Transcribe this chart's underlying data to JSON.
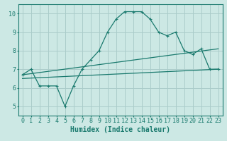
{
  "title": "",
  "xlabel": "Humidex (Indice chaleur)",
  "ylabel": "",
  "background_color": "#cce8e4",
  "grid_color": "#aaccca",
  "line_color": "#1a7a6e",
  "xlim": [
    -0.5,
    23.5
  ],
  "ylim": [
    4.5,
    10.5
  ],
  "xticks": [
    0,
    1,
    2,
    3,
    4,
    5,
    6,
    7,
    8,
    9,
    10,
    11,
    12,
    13,
    14,
    15,
    16,
    17,
    18,
    19,
    20,
    21,
    22,
    23
  ],
  "yticks": [
    5,
    6,
    7,
    8,
    9,
    10
  ],
  "main_line": {
    "x": [
      0,
      1,
      2,
      3,
      4,
      5,
      6,
      7,
      8,
      9,
      10,
      11,
      12,
      13,
      14,
      15,
      16,
      17,
      18,
      19,
      20,
      21,
      22,
      23
    ],
    "y": [
      6.7,
      7.0,
      6.1,
      6.1,
      6.1,
      5.0,
      6.1,
      7.0,
      7.5,
      8.0,
      9.0,
      9.7,
      10.1,
      10.1,
      10.1,
      9.7,
      9.0,
      8.8,
      9.0,
      8.0,
      7.8,
      8.1,
      7.0,
      7.0
    ]
  },
  "upper_line": {
    "x": [
      0,
      23
    ],
    "y": [
      6.7,
      8.1
    ]
  },
  "lower_line": {
    "x": [
      0,
      23
    ],
    "y": [
      6.5,
      7.0
    ]
  },
  "font_color": "#1a7a6e",
  "font_size_label": 7,
  "font_size_tick": 6
}
